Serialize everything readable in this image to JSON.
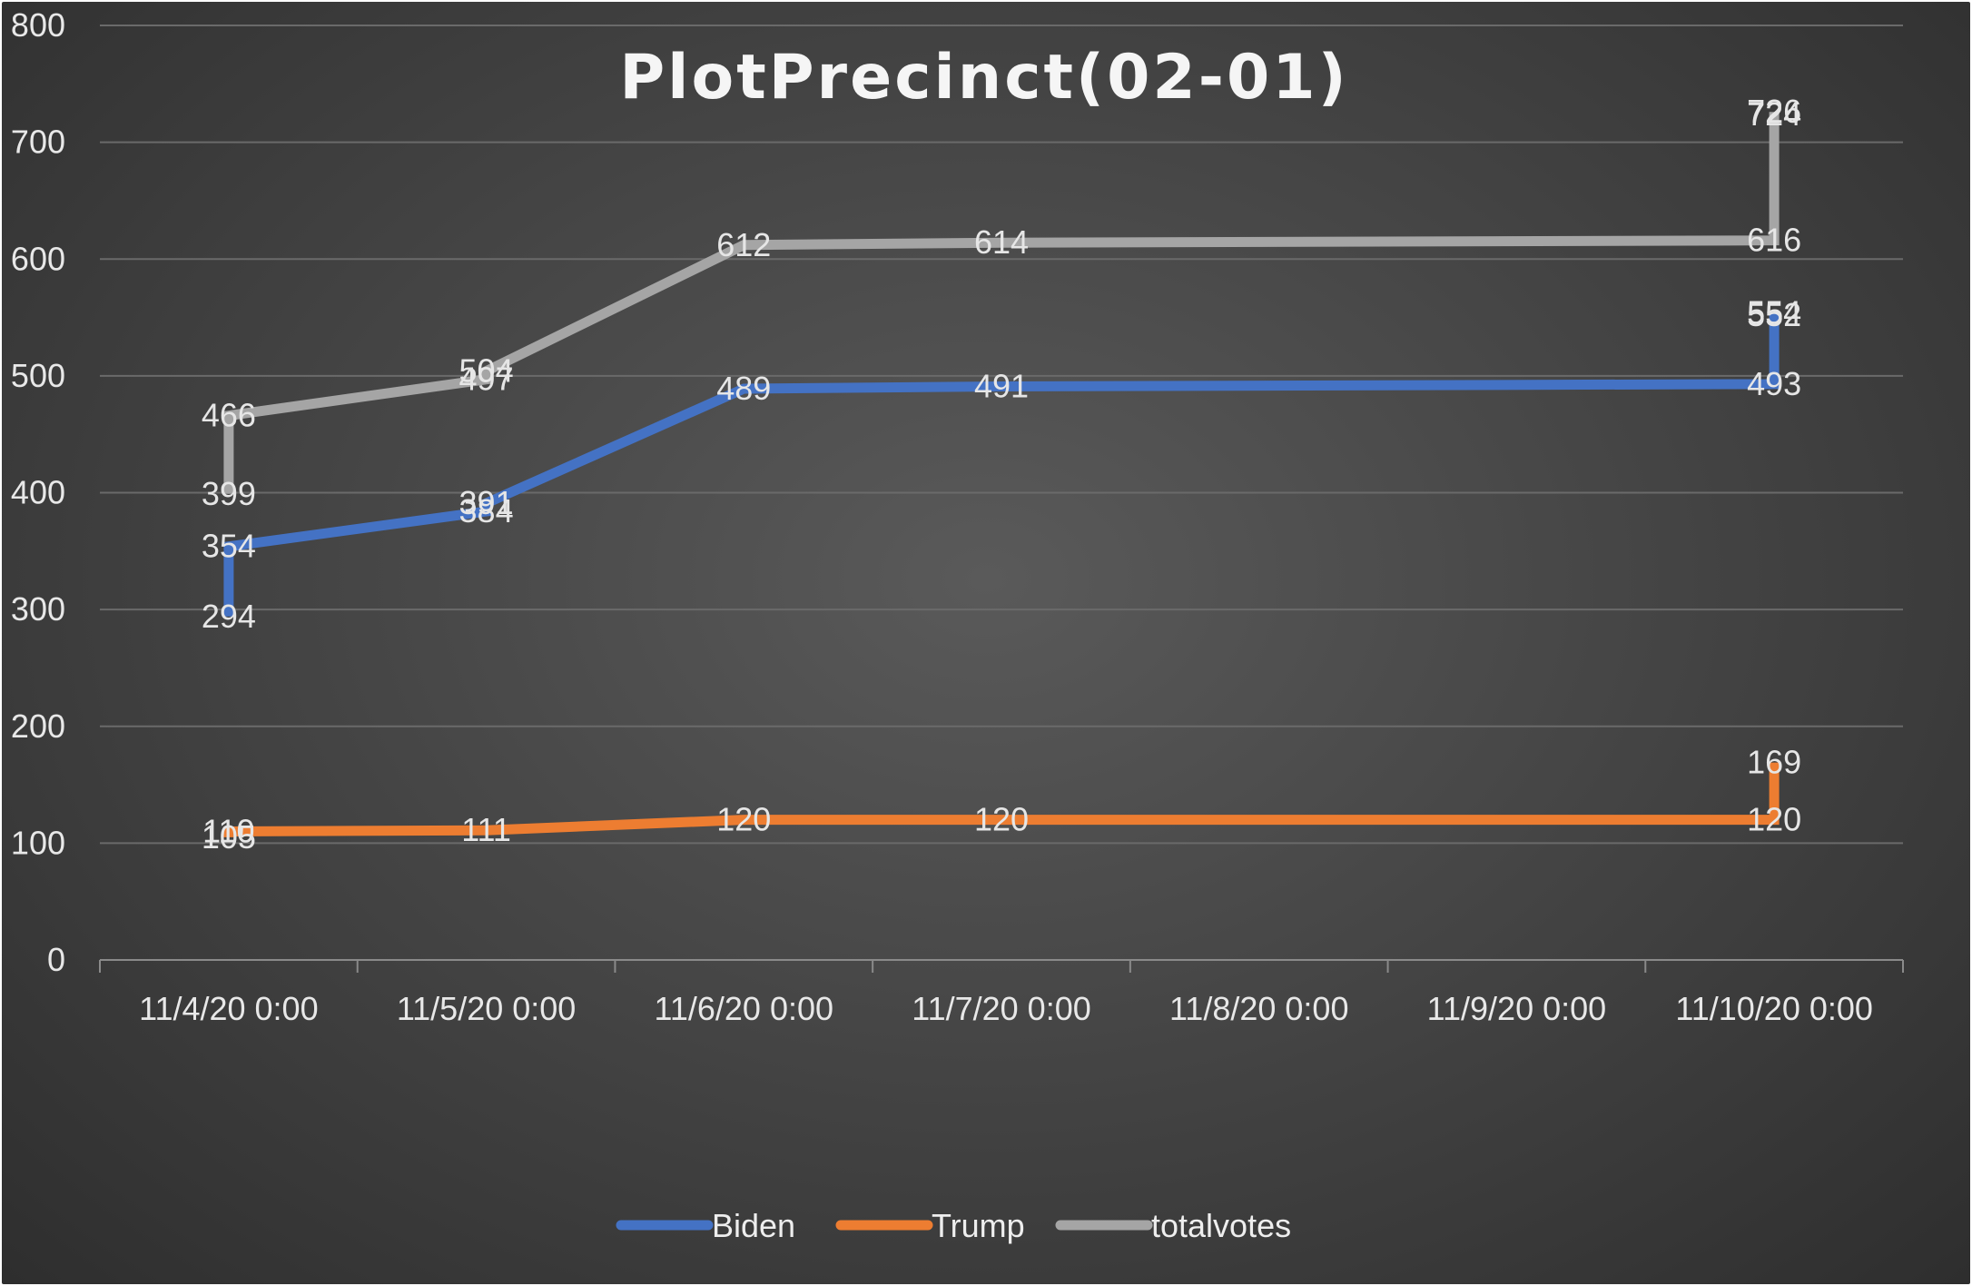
{
  "chart_data": {
    "type": "line",
    "title": "PlotPrecinct(02-01)",
    "xlabel": "",
    "ylabel": "",
    "ylim": [
      0,
      800
    ],
    "yticks": [
      0,
      100,
      200,
      300,
      400,
      500,
      600,
      700,
      800
    ],
    "categories": [
      "11/4/20 0:00",
      "11/5/20 0:00",
      "11/6/20 0:00",
      "11/7/20 0:00",
      "11/8/20 0:00",
      "11/9/20 0:00",
      "11/10/20 0:00"
    ],
    "grid": true,
    "legend_position": "bottom",
    "series": [
      {
        "name": "Biden",
        "color": "#4472c4",
        "points": [
          {
            "x": "11/4/20 0:00",
            "y": 294
          },
          {
            "x": "11/4/20 0:00",
            "y": 354
          },
          {
            "x": "11/5/20 0:00",
            "y": 384
          },
          {
            "x": "11/5/20 0:00",
            "y": 391
          },
          {
            "x": "11/6/20 0:00",
            "y": 489
          },
          {
            "x": "11/7/20 0:00",
            "y": 491
          },
          {
            "x": "11/10/20 0:00",
            "y": 493
          },
          {
            "x": "11/10/20 0:00",
            "y": 552
          },
          {
            "x": "11/10/20 0:00",
            "y": 554
          }
        ]
      },
      {
        "name": "Trump",
        "color": "#ed7d31",
        "points": [
          {
            "x": "11/4/20 0:00",
            "y": 105
          },
          {
            "x": "11/4/20 0:00",
            "y": 110
          },
          {
            "x": "11/5/20 0:00",
            "y": 111
          },
          {
            "x": "11/6/20 0:00",
            "y": 120
          },
          {
            "x": "11/7/20 0:00",
            "y": 120
          },
          {
            "x": "11/10/20 0:00",
            "y": 120
          },
          {
            "x": "11/10/20 0:00",
            "y": 169
          }
        ]
      },
      {
        "name": "totalvotes",
        "color": "#a5a5a5",
        "points": [
          {
            "x": "11/4/20 0:00",
            "y": 399
          },
          {
            "x": "11/4/20 0:00",
            "y": 466
          },
          {
            "x": "11/5/20 0:00",
            "y": 497
          },
          {
            "x": "11/5/20 0:00",
            "y": 504
          },
          {
            "x": "11/6/20 0:00",
            "y": 612
          },
          {
            "x": "11/7/20 0:00",
            "y": 614
          },
          {
            "x": "11/10/20 0:00",
            "y": 616
          },
          {
            "x": "11/10/20 0:00",
            "y": 724
          },
          {
            "x": "11/10/20 0:00",
            "y": 726
          }
        ]
      }
    ]
  }
}
